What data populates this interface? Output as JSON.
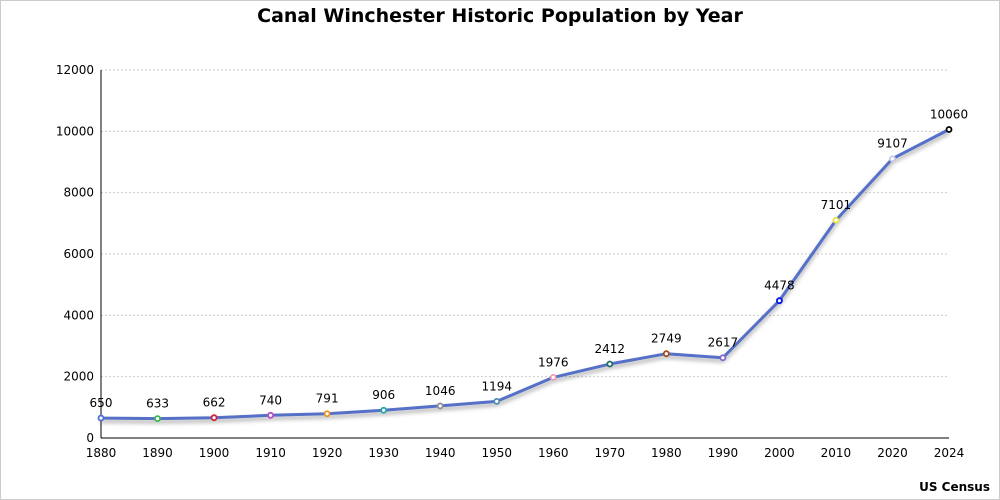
{
  "chart_data": {
    "type": "line",
    "title": "Canal Winchester Historic Population by Year",
    "source": "US Census",
    "xlabel": "",
    "ylabel": "",
    "ylim": [
      0,
      12000
    ],
    "yticks": [
      0,
      2000,
      4000,
      6000,
      8000,
      10000,
      12000
    ],
    "grid": true,
    "categories": [
      "1880",
      "1890",
      "1900",
      "1910",
      "1920",
      "1930",
      "1940",
      "1950",
      "1960",
      "1970",
      "1980",
      "1990",
      "2000",
      "2010",
      "2020",
      "2024"
    ],
    "series": [
      {
        "name": "Population",
        "color": "#5470c6",
        "values": [
          650,
          633,
          662,
          740,
          791,
          906,
          1046,
          1194,
          1976,
          2412,
          2749,
          2617,
          4478,
          7101,
          9107,
          10060
        ]
      }
    ],
    "point_colors": [
      "#4f6fd0",
      "#3cb84a",
      "#d0203c",
      "#b64fc8",
      "#e89020",
      "#20a8a0",
      "#909090",
      "#4a90b0",
      "#e8a0b0",
      "#1e6e68",
      "#a0501e",
      "#8068d0",
      "#0010f0",
      "#e8e040",
      "#c8c8e8",
      "#000000"
    ]
  }
}
